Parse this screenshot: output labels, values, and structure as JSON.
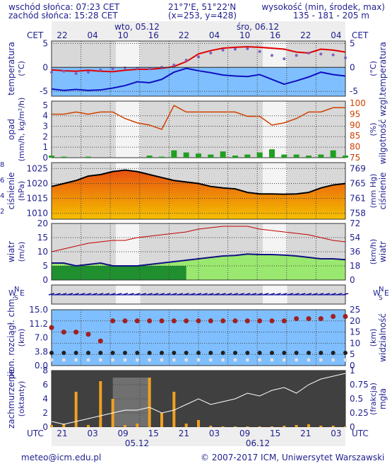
{
  "header": {
    "sunrise": "wschód słońca: 07:23 CET",
    "sunset": "zachód słońca: 15:28 CET",
    "coords": "21°7'E, 51°22'N",
    "grid": "(x=253, y=428)",
    "altitude_label": "wysokość (min, środek, max)",
    "altitude_values": "135 - 181 - 205 m"
  },
  "time_axis": {
    "top_label_left": "CET",
    "top_label_right": "CET",
    "top_hours": [
      "22",
      "04",
      "10",
      "16",
      "22",
      "04",
      "10",
      "16",
      "22",
      "04"
    ],
    "top_dates": [
      "wto, 05.12",
      "śro, 06.12"
    ],
    "bottom_label_left": "UTC",
    "bottom_label_right": "UTC",
    "bottom_hours": [
      "21",
      "03",
      "09",
      "15",
      "21",
      "03",
      "09",
      "15",
      "21",
      "03"
    ],
    "bottom_dates": [
      "05.12",
      "06.12"
    ]
  },
  "panels": {
    "temperature": {
      "ylabel_left": "temperatura",
      "unit_left": "(°C)",
      "ylabel_right": "temperatura",
      "unit_right": "(°C)",
      "ticks": [
        "5",
        "0",
        "-5"
      ]
    },
    "precip": {
      "ylabel_left": "opad",
      "unit_left": "(mm/h, kg/m²/h)",
      "ylabel_right": "wilgotność wzgl.",
      "unit_right": "(%)",
      "ticks_left": [
        "5",
        "4",
        "3",
        "2",
        "1",
        "0"
      ],
      "ticks_right": [
        "100",
        "95",
        "90",
        "85",
        "80",
        "75"
      ]
    },
    "pressure": {
      "ylabel_left": "ciśnienie",
      "unit_left": "(hPa)",
      "ylabel_right": "ciśnienie",
      "unit_right": "(mm Hg)",
      "ticks_left": [
        "1025",
        "1020",
        "1015",
        "1010"
      ],
      "ticks_right": [
        "769",
        "765",
        "761",
        "758"
      ]
    },
    "wind": {
      "ylabel_left": "wiatr",
      "unit_left": "(m/s)",
      "ylabel_right": "wiatr",
      "unit_right": "(km/h)",
      "ticks_left": [
        "20",
        "15",
        "10",
        "5",
        "0"
      ],
      "ticks_right": [
        "72",
        "54",
        "36",
        "18",
        "0"
      ]
    },
    "winddir": {
      "compass": [
        "N",
        "S",
        "W",
        "E"
      ]
    },
    "visibility": {
      "ylabel_left": "pion. rozciągł. chm.",
      "unit_left": "(km)",
      "ylabel_right": "widzialność",
      "unit_right": "(km)",
      "ticks_left": [
        "15.0",
        "11.2",
        "7.0",
        "3.8",
        "0.0"
      ],
      "ticks_right": [
        "25",
        "20",
        "15",
        "10",
        "5",
        "0"
      ]
    },
    "clouds": {
      "ylabel_left": "zachmurzenie",
      "unit_left": "(oktanty)",
      "ylabel_right": "mgła",
      "unit_right": "(frakcja)",
      "ticks_left": [
        "8",
        "6",
        "4",
        "2",
        "0"
      ],
      "ticks_right": [
        "1",
        "0.75",
        "0.5",
        "0.25",
        "0"
      ]
    }
  },
  "edge_cut_labels": [
    "8",
    "6",
    "4",
    "2"
  ],
  "footer": {
    "email": "meteo@icm.edu.pl",
    "copyright": "© 2007-2017 ICM, Uniwersytet Warszawski"
  },
  "colors": {
    "text": "#1f1f8f",
    "temp": "#e00000",
    "dew": "#1010c0",
    "pressure_line": "#000000",
    "humidity": "#d04000"
  },
  "chart_data": [
    {
      "type": "line",
      "name": "temperature",
      "ylim": [
        -6,
        5.5
      ],
      "x": [
        0,
        2,
        4,
        6,
        8,
        10,
        12,
        14,
        16,
        18,
        20,
        22,
        24,
        26,
        28,
        30,
        32,
        34,
        36,
        38,
        40,
        42,
        44,
        46,
        48
      ],
      "series": [
        {
          "values": [
            -0.5,
            -0.7,
            -0.8,
            -0.6,
            -0.8,
            -0.9,
            -0.6,
            -0.4,
            -0.4,
            -0.2,
            0.2,
            1.2,
            2.8,
            3.5,
            4.0,
            4.2,
            4.3,
            4.2,
            4.0,
            3.8,
            3.2,
            3.0,
            3.8,
            3.6,
            3.2
          ]
        },
        {
          "values": [
            -4.5,
            -4.8,
            -4.6,
            -4.8,
            -4.7,
            -4.3,
            -3.8,
            -3.0,
            -3.2,
            -2.5,
            -1.0,
            -0.2,
            -0.7,
            -1.1,
            -1.6,
            -1.8,
            -1.9,
            -1.5,
            -2.5,
            -3.5,
            -2.8,
            -2.0,
            -1.0,
            -1.5,
            -1.8
          ]
        },
        {
          "values": [
            -1.0,
            -0.8,
            -1.3,
            -1.0,
            -0.5,
            -0.3,
            -0.1,
            -0.2,
            -0.3,
            0,
            0.5,
            1.5,
            2.2,
            3.0,
            3.6,
            3.8,
            3.9,
            3.3,
            2.5,
            1.8,
            2.5,
            3.0,
            2.8,
            2.6,
            2.0
          ]
        }
      ]
    },
    {
      "type": "bar",
      "name": "precip_humidity",
      "ylim": [
        0,
        5
      ],
      "x": [
        0,
        2,
        4,
        6,
        8,
        10,
        12,
        14,
        16,
        18,
        20,
        22,
        24,
        26,
        28,
        30,
        32,
        34,
        36,
        38,
        40,
        42,
        44,
        46,
        48
      ],
      "values": [
        0.2,
        0.1,
        0,
        0.1,
        0,
        0,
        0,
        0,
        0.2,
        0.1,
        0.7,
        0.5,
        0.4,
        0.3,
        0.6,
        0.2,
        0.3,
        0.5,
        0.8,
        0.3,
        0.3,
        0.2,
        0.3,
        0.7,
        0.2
      ],
      "series": [
        {
          "values": [
            95,
            95,
            96,
            95,
            96,
            96,
            93,
            91,
            90,
            88,
            99,
            96,
            96,
            96,
            96,
            96,
            94,
            94,
            90,
            91,
            93,
            96,
            96,
            98,
            98
          ]
        }
      ]
    },
    {
      "type": "area",
      "name": "pressure",
      "ylim": [
        1008,
        1027
      ],
      "x": [
        0,
        2,
        4,
        6,
        8,
        10,
        12,
        14,
        16,
        18,
        20,
        22,
        24,
        26,
        28,
        30,
        32,
        34,
        36,
        38,
        40,
        42,
        44,
        46,
        48
      ],
      "values": [
        1019,
        1020,
        1021,
        1022.5,
        1023,
        1024,
        1024.5,
        1024,
        1023,
        1022,
        1021,
        1020.5,
        1020,
        1019,
        1018.5,
        1018.2,
        1017,
        1016.5,
        1016.5,
        1016.4,
        1016.5,
        1017,
        1018.5,
        1019.5,
        1020
      ]
    },
    {
      "type": "line",
      "name": "wind",
      "ylim": [
        0,
        20
      ],
      "x": [
        0,
        2,
        4,
        6,
        8,
        10,
        12,
        14,
        16,
        18,
        20,
        22,
        24,
        26,
        28,
        30,
        32,
        34,
        36,
        38,
        40,
        42,
        44,
        46,
        48
      ],
      "series": [
        {
          "values": [
            10,
            11,
            12,
            13,
            13.5,
            14,
            14,
            15,
            15.5,
            16,
            16.5,
            17,
            18,
            18.5,
            19,
            19,
            19,
            18,
            17.5,
            17,
            16.5,
            16,
            15,
            14,
            13.5
          ]
        },
        {
          "values": [
            6,
            6,
            5,
            5.5,
            6,
            5,
            5,
            5,
            5.5,
            6,
            6.5,
            7,
            7.5,
            8,
            8.5,
            8.7,
            9.2,
            9,
            9,
            8.8,
            8.5,
            8,
            7.5,
            7.5,
            7.2
          ]
        }
      ]
    },
    {
      "type": "scatter",
      "name": "visibility",
      "ylim": [
        0,
        25
      ],
      "x": [
        0,
        2,
        4,
        6,
        8,
        10,
        12,
        14,
        16,
        18,
        20,
        22,
        24,
        26,
        28,
        30,
        32,
        34,
        36,
        38,
        40,
        42,
        44,
        46,
        48
      ],
      "values": [
        17,
        15,
        15,
        14,
        11,
        20,
        20,
        20,
        20,
        20,
        20,
        20,
        20,
        20,
        20,
        20,
        20,
        20,
        20,
        20,
        21,
        21,
        21,
        22,
        22
      ]
    },
    {
      "type": "bar",
      "name": "clouds",
      "ylim": [
        0,
        8
      ],
      "x": [
        0,
        2,
        4,
        6,
        8,
        10,
        12,
        14,
        16,
        18,
        20,
        22,
        24,
        26,
        28,
        30,
        32,
        34,
        36,
        38,
        40,
        42,
        44,
        46,
        48
      ],
      "values": [
        0.3,
        0.5,
        5,
        0.3,
        6.5,
        4,
        0.3,
        0.5,
        7,
        2,
        5,
        0.5,
        1,
        0.2,
        0.1,
        0.1,
        0.1,
        0.1,
        0.1,
        0.2,
        0.3,
        0.4,
        0.2,
        0.2,
        0.1
      ],
      "series": [
        {
          "values": [
            0.1,
            0.05,
            0.1,
            0.15,
            0.2,
            0.25,
            0.3,
            0.3,
            0.35,
            0.25,
            0.3,
            0.4,
            0.5,
            0.4,
            0.45,
            0.5,
            0.6,
            0.55,
            0.65,
            0.7,
            0.6,
            0.75,
            0.85,
            0.9,
            0.95
          ]
        }
      ]
    }
  ]
}
